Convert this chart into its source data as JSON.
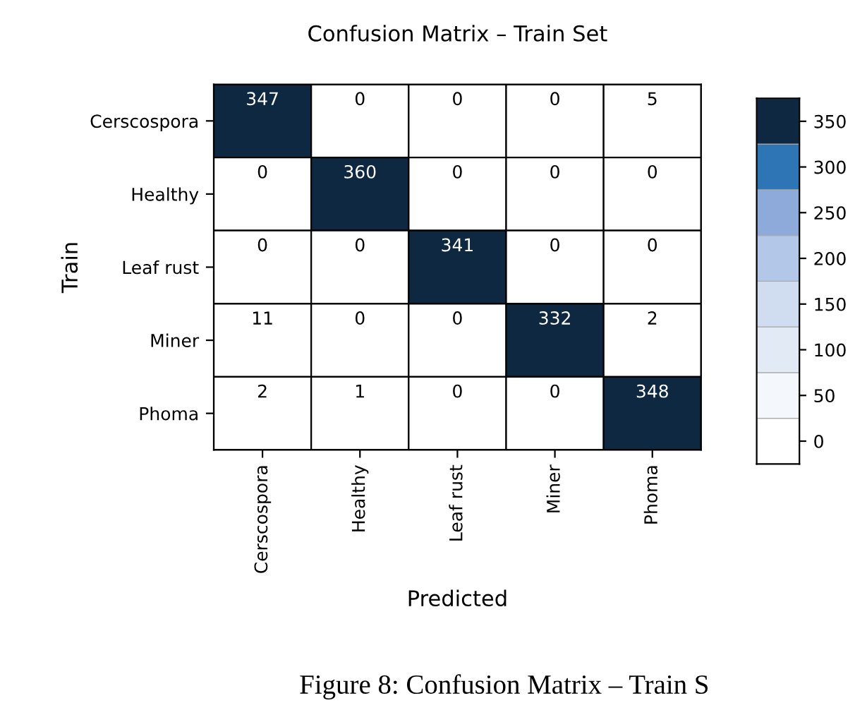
{
  "chart_data": {
    "type": "heatmap",
    "title": "Confusion Matrix – Train Set",
    "xlabel": "Predicted",
    "ylabel": "Train",
    "categories": [
      "Cerscospora",
      "Healthy",
      "Leaf rust",
      "Miner",
      "Phoma"
    ],
    "y_categories": [
      "Cerscospora",
      "Healthy",
      "Leaf rust",
      "Miner",
      "Phoma"
    ],
    "cells": [
      [
        347,
        0,
        0,
        0,
        5
      ],
      [
        0,
        360,
        0,
        0,
        0
      ],
      [
        0,
        0,
        341,
        0,
        0
      ],
      [
        11,
        0,
        0,
        332,
        2
      ],
      [
        2,
        1,
        0,
        0,
        348
      ]
    ],
    "data_labels": true,
    "clim": [
      -25,
      375
    ],
    "cticks": [
      0,
      50,
      100,
      150,
      200,
      250,
      300,
      350
    ],
    "annotations": [
      "Figure 8: Confusion Matrix – Train S"
    ]
  }
}
